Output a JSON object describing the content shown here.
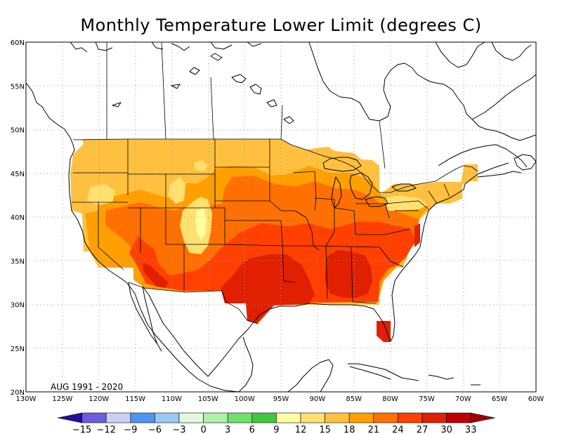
{
  "title": "Monthly Temperature Lower Limit (degrees C)",
  "period": "AUG 1991 - 2020",
  "map": {
    "lon_range": [
      -130,
      -60
    ],
    "lat_range": [
      20,
      60
    ],
    "lon_ticks": [
      "130W",
      "125W",
      "120W",
      "115W",
      "110W",
      "105W",
      "100W",
      "95W",
      "90W",
      "85W",
      "80W",
      "75W",
      "70W",
      "65W",
      "60W"
    ],
    "lat_ticks": [
      "20N",
      "25N",
      "30N",
      "35N",
      "40N",
      "45N",
      "50N",
      "55N",
      "60N"
    ],
    "grid": "dotted"
  },
  "colorbar": {
    "labels": [
      "-15",
      "-12",
      "-9",
      "-6",
      "-3",
      "0",
      "3",
      "6",
      "9",
      "12",
      "15",
      "18",
      "21",
      "24",
      "27",
      "30",
      "33"
    ],
    "colors": [
      "#2a0c9e",
      "#6b5ce0",
      "#cdd0f5",
      "#4d94f0",
      "#9cc8f5",
      "#e3f8e0",
      "#b0f0a8",
      "#70e070",
      "#40c840",
      "#ffffa0",
      "#ffe070",
      "#ffc040",
      "#ffa000",
      "#ff7000",
      "#ff4000",
      "#e02000",
      "#c00000",
      "#a00000"
    ]
  },
  "colors": {
    "c18_21": "#ffc040",
    "c21_24": "#ffa000",
    "c24_27": "#ff7000",
    "c27_30": "#ff4000",
    "c30_33": "#e02000",
    "c15_18": "#ffe070",
    "c12_15": "#ffffa0"
  }
}
